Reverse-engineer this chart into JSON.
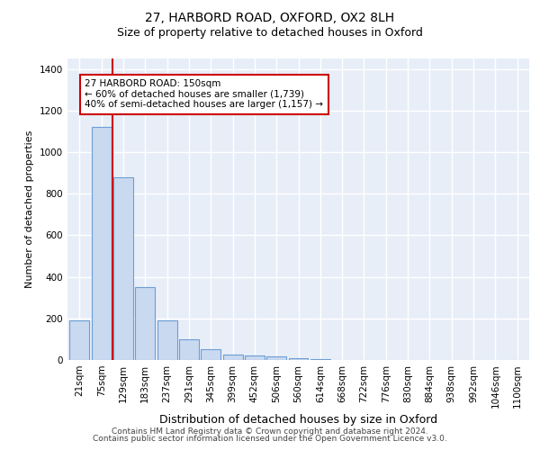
{
  "title_line1": "27, HARBORD ROAD, OXFORD, OX2 8LH",
  "title_line2": "Size of property relative to detached houses in Oxford",
  "xlabel": "Distribution of detached houses by size in Oxford",
  "ylabel": "Number of detached properties",
  "footer_line1": "Contains HM Land Registry data © Crown copyright and database right 2024.",
  "footer_line2": "Contains public sector information licensed under the Open Government Licence v3.0.",
  "categories": [
    "21sqm",
    "75sqm",
    "129sqm",
    "183sqm",
    "237sqm",
    "291sqm",
    "345sqm",
    "399sqm",
    "452sqm",
    "506sqm",
    "560sqm",
    "614sqm",
    "668sqm",
    "722sqm",
    "776sqm",
    "830sqm",
    "884sqm",
    "938sqm",
    "992sqm",
    "1046sqm",
    "1100sqm"
  ],
  "bar_values": [
    190,
    1120,
    880,
    350,
    190,
    98,
    52,
    25,
    20,
    18,
    10,
    5,
    0,
    0,
    0,
    0,
    0,
    0,
    0,
    0,
    0
  ],
  "bar_color": "#c9d9f0",
  "bar_edgecolor": "#6b9fd4",
  "vline_color": "#cc0000",
  "vline_x_pos": 1.5,
  "annotation_line1": "27 HARBORD ROAD: 150sqm",
  "annotation_line2": "← 60% of detached houses are smaller (1,739)",
  "annotation_line3": "40% of semi-detached houses are larger (1,157) →",
  "annotation_box_edgecolor": "#cc0000",
  "annotation_box_facecolor": "white",
  "ylim": [
    0,
    1450
  ],
  "yticks": [
    0,
    200,
    400,
    600,
    800,
    1000,
    1200,
    1400
  ],
  "plot_bg_color": "#e8eef8",
  "grid_color": "white",
  "title_fontsize": 10,
  "subtitle_fontsize": 9,
  "ylabel_fontsize": 8,
  "xlabel_fontsize": 9,
  "tick_fontsize": 7.5,
  "footer_fontsize": 6.5
}
